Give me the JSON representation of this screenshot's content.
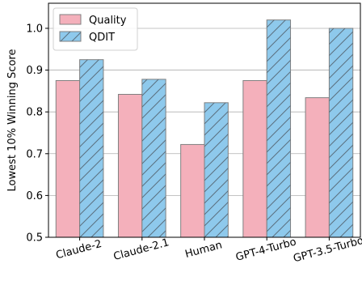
{
  "chart_data": {
    "type": "bar",
    "categories": [
      "Claude-2",
      "Claude-2.1",
      "Human",
      "GPT-4-Turbo",
      "GPT-3.5-Turbo"
    ],
    "series": [
      {
        "name": "Quality",
        "values": [
          0.875,
          0.842,
          0.722,
          0.875,
          0.834
        ],
        "color": "#f4b0bb",
        "hatch": "none"
      },
      {
        "name": "QDIT",
        "values": [
          0.925,
          0.878,
          0.822,
          1.02,
          1.0
        ],
        "color": "#8ec9ec",
        "hatch": "diagonal"
      }
    ],
    "xlabel": "",
    "ylabel": "Lowest 10% Winning Score",
    "ylim": [
      0.5,
      1.06
    ],
    "yticks": [
      0.5,
      0.6,
      0.7,
      0.8,
      0.9,
      1.0
    ],
    "ytick_labels": [
      "0.5",
      "0.6",
      "0.7",
      "0.8",
      "0.9",
      "1.0"
    ],
    "grid": "horizontal",
    "legend_position": "top-left",
    "xtick_rotation": -15,
    "bar_edge_color": "#808080"
  }
}
